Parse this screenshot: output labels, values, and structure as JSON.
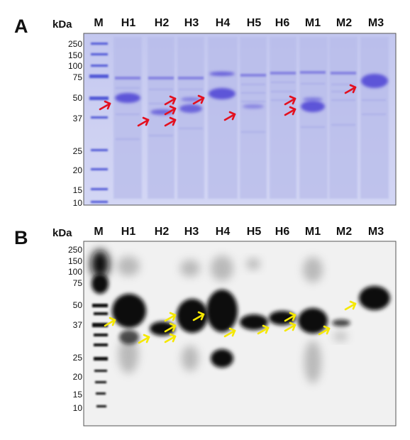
{
  "panels": [
    {
      "letter": "A",
      "unit": "kDa",
      "lanes": [
        "M",
        "H1",
        "H2",
        "H3",
        "H4",
        "H5",
        "H6",
        "M1",
        "M2",
        "M3"
      ],
      "markers": [
        "250",
        "150",
        "100",
        "75",
        "50",
        "37",
        "25",
        "20",
        "15",
        "10"
      ],
      "gel_color": "#c9cdf1",
      "band_color": "#5a52d8",
      "arrow_color": "#e3101f"
    },
    {
      "letter": "B",
      "unit": "kDa",
      "lanes": [
        "M",
        "H1",
        "H2",
        "H3",
        "H4",
        "H5",
        "H6",
        "M1",
        "M2",
        "M3"
      ],
      "markers": [
        "250",
        "150",
        "100",
        "75",
        "50",
        "37",
        "25",
        "20",
        "15",
        "10"
      ],
      "blot_color": "#f1f1f1",
      "band_color": "#0a0a0a",
      "arrow_color": "#f5e800"
    }
  ]
}
